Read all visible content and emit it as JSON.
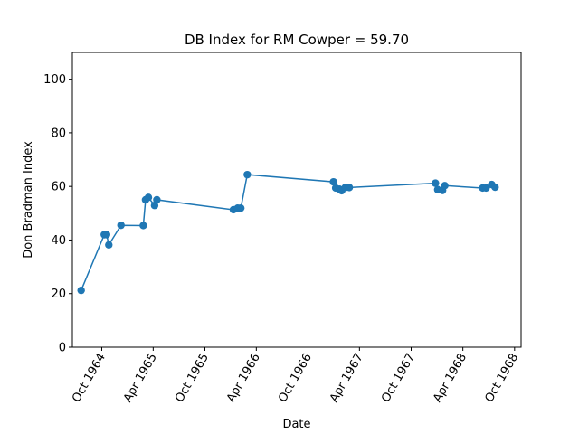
{
  "chart_data": {
    "type": "line",
    "title": "DB Index for RM Cowper = 59.70",
    "xlabel": "Date",
    "ylabel": "Don Bradman Index",
    "ylim": [
      0,
      110
    ],
    "xlim": [
      "1964-06-19",
      "1968-10-24"
    ],
    "grid": false,
    "legend": "none",
    "color": "#1f77b4",
    "yticks": [
      0,
      20,
      40,
      60,
      80,
      100
    ],
    "xticks": [
      {
        "date": "1964-10-01",
        "label": "Oct 1964"
      },
      {
        "date": "1965-04-01",
        "label": "Apr 1965"
      },
      {
        "date": "1965-10-01",
        "label": "Oct 1965"
      },
      {
        "date": "1966-04-01",
        "label": "Apr 1966"
      },
      {
        "date": "1966-10-01",
        "label": "Oct 1966"
      },
      {
        "date": "1967-04-01",
        "label": "Apr 1967"
      },
      {
        "date": "1967-10-01",
        "label": "Oct 1967"
      },
      {
        "date": "1968-04-01",
        "label": "Apr 1968"
      },
      {
        "date": "1968-10-01",
        "label": "Oct 1968"
      }
    ],
    "series": [
      {
        "x": [
          "1964-07-20",
          "1964-10-10",
          "1964-10-18",
          "1964-10-26",
          "1964-12-08",
          "1965-02-25",
          "1965-03-05",
          "1965-03-15",
          "1965-04-06",
          "1965-04-14",
          "1966-01-10",
          "1966-01-25",
          "1966-02-05",
          "1966-02-28",
          "1966-12-30",
          "1967-01-07",
          "1967-01-20",
          "1967-01-28",
          "1967-02-10",
          "1967-02-24",
          "1967-12-26",
          "1968-01-03",
          "1968-01-20",
          "1968-01-28",
          "1968-06-10",
          "1968-06-22",
          "1968-07-12",
          "1968-07-24"
        ],
        "y": [
          21.2,
          42.0,
          42.0,
          38.2,
          45.5,
          45.4,
          55.0,
          55.9,
          52.9,
          55.0,
          51.3,
          51.9,
          51.9,
          64.4,
          61.7,
          59.4,
          59.0,
          58.4,
          59.6,
          59.6,
          61.2,
          58.8,
          58.5,
          60.3,
          59.4,
          59.4,
          60.7,
          59.7
        ]
      }
    ]
  }
}
